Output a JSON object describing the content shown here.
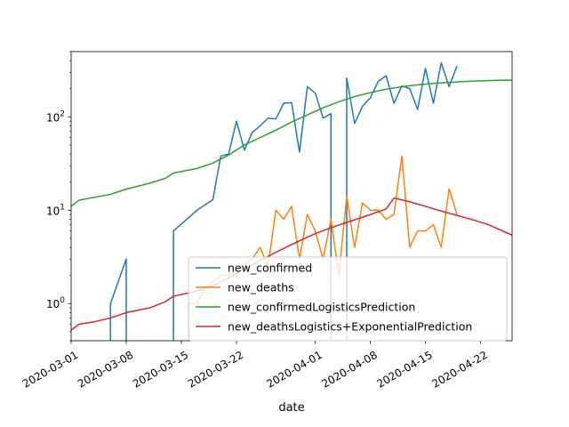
{
  "chart_data": {
    "type": "line",
    "xlabel": "date",
    "ylabel": "",
    "x_axis_type": "date",
    "xlim": [
      "2020-03-01",
      "2020-04-26"
    ],
    "y_scale": "log",
    "ylim": [
      0.4,
      500
    ],
    "y_ticks": [
      {
        "value": 1,
        "base": "10",
        "exp": "0"
      },
      {
        "value": 10,
        "base": "10",
        "exp": "1"
      },
      {
        "value": 100,
        "base": "10",
        "exp": "2"
      }
    ],
    "x_ticks": [
      {
        "date": "2020-03-01",
        "label": "2020-03-01"
      },
      {
        "date": "2020-03-08",
        "label": "2020-03-08"
      },
      {
        "date": "2020-03-15",
        "label": "2020-03-15"
      },
      {
        "date": "2020-03-22",
        "label": "2020-03-22"
      },
      {
        "date": "2020-04-01",
        "label": "2020-04-01"
      },
      {
        "date": "2020-04-08",
        "label": "2020-04-08"
      },
      {
        "date": "2020-04-15",
        "label": "2020-04-15"
      },
      {
        "date": "2020-04-22",
        "label": "2020-04-22"
      }
    ],
    "grid": false,
    "legend_position": "lower-right",
    "series": [
      {
        "name": "new_confirmed",
        "color": "#1f77b4",
        "points": [
          [
            "2020-03-06",
            0
          ],
          [
            "2020-03-06",
            1
          ],
          [
            "2020-03-08",
            3
          ],
          [
            "2020-03-08",
            0
          ],
          [
            "2020-03-14",
            0
          ],
          [
            "2020-03-14",
            6
          ],
          [
            "2020-03-17",
            10
          ],
          [
            "2020-03-19",
            13
          ],
          [
            "2020-03-20",
            38
          ],
          [
            "2020-03-21",
            40
          ],
          [
            "2020-03-22",
            90
          ],
          [
            "2020-03-23",
            44
          ],
          [
            "2020-03-24",
            68
          ],
          [
            "2020-03-25",
            80
          ],
          [
            "2020-03-26",
            97
          ],
          [
            "2020-03-27",
            95
          ],
          [
            "2020-03-28",
            140
          ],
          [
            "2020-03-29",
            142
          ],
          [
            "2020-03-30",
            42
          ],
          [
            "2020-03-31",
            210
          ],
          [
            "2020-04-01",
            180
          ],
          [
            "2020-04-02",
            97
          ],
          [
            "2020-04-03",
            108
          ],
          [
            "2020-04-03",
            0
          ],
          [
            "2020-04-05",
            0
          ],
          [
            "2020-04-05",
            260
          ],
          [
            "2020-04-06",
            85
          ],
          [
            "2020-04-07",
            130
          ],
          [
            "2020-04-08",
            160
          ],
          [
            "2020-04-09",
            240
          ],
          [
            "2020-04-10",
            275
          ],
          [
            "2020-04-11",
            140
          ],
          [
            "2020-04-12",
            215
          ],
          [
            "2020-04-13",
            200
          ],
          [
            "2020-04-14",
            120
          ],
          [
            "2020-04-15",
            330
          ],
          [
            "2020-04-16",
            140
          ],
          [
            "2020-04-17",
            380
          ],
          [
            "2020-04-18",
            210
          ],
          [
            "2020-04-19",
            350
          ]
        ]
      },
      {
        "name": "new_deaths",
        "color": "#ff7f0e",
        "points": [
          [
            "2020-03-16",
            0
          ],
          [
            "2020-03-16",
            1
          ],
          [
            "2020-03-17",
            1
          ],
          [
            "2020-03-18",
            1.5
          ],
          [
            "2020-03-19",
            1.7
          ],
          [
            "2020-03-20",
            2
          ],
          [
            "2020-03-21",
            2
          ],
          [
            "2020-03-22",
            2.3
          ],
          [
            "2020-03-23",
            2.6
          ],
          [
            "2020-03-24",
            3
          ],
          [
            "2020-03-25",
            4
          ],
          [
            "2020-03-26",
            2.5
          ],
          [
            "2020-03-27",
            10
          ],
          [
            "2020-03-28",
            8
          ],
          [
            "2020-03-29",
            11
          ],
          [
            "2020-03-30",
            3
          ],
          [
            "2020-03-31",
            9
          ],
          [
            "2020-04-01",
            6
          ],
          [
            "2020-04-02",
            3
          ],
          [
            "2020-04-03",
            8
          ],
          [
            "2020-04-04",
            2
          ],
          [
            "2020-04-05",
            14
          ],
          [
            "2020-04-06",
            4
          ],
          [
            "2020-04-07",
            12
          ],
          [
            "2020-04-08",
            10
          ],
          [
            "2020-04-09",
            10
          ],
          [
            "2020-04-10",
            8
          ],
          [
            "2020-04-11",
            9
          ],
          [
            "2020-04-12",
            38
          ],
          [
            "2020-04-13",
            4
          ],
          [
            "2020-04-14",
            6
          ],
          [
            "2020-04-15",
            6
          ],
          [
            "2020-04-16",
            7
          ],
          [
            "2020-04-17",
            4
          ],
          [
            "2020-04-18",
            17
          ],
          [
            "2020-04-19",
            9
          ]
        ]
      },
      {
        "name": "new_confirmedLogisticsPrediction",
        "color": "#2ca02c",
        "points": [
          [
            "2020-03-01",
            11
          ],
          [
            "2020-03-02",
            12.8
          ],
          [
            "2020-03-06",
            14.8
          ],
          [
            "2020-03-08",
            16.8
          ],
          [
            "2020-03-11",
            19.5
          ],
          [
            "2020-03-13",
            22
          ],
          [
            "2020-03-14",
            25
          ],
          [
            "2020-03-17",
            28
          ],
          [
            "2020-03-19",
            32
          ],
          [
            "2020-03-21",
            39
          ],
          [
            "2020-03-23",
            50
          ],
          [
            "2020-03-25",
            60
          ],
          [
            "2020-03-27",
            72
          ],
          [
            "2020-03-29",
            88
          ],
          [
            "2020-03-31",
            105
          ],
          [
            "2020-04-02",
            125
          ],
          [
            "2020-04-04",
            145
          ],
          [
            "2020-04-06",
            165
          ],
          [
            "2020-04-08",
            182
          ],
          [
            "2020-04-10",
            198
          ],
          [
            "2020-04-12",
            210
          ],
          [
            "2020-04-14",
            220
          ],
          [
            "2020-04-16",
            228
          ],
          [
            "2020-04-18",
            234
          ],
          [
            "2020-04-20",
            239
          ],
          [
            "2020-04-22",
            243
          ],
          [
            "2020-04-24",
            246
          ],
          [
            "2020-04-26",
            248
          ]
        ]
      },
      {
        "name": "new_deathsLogistics+ExponentialPrediction",
        "color": "#d62728",
        "points": [
          [
            "2020-03-01",
            0.52
          ],
          [
            "2020-03-02",
            0.6
          ],
          [
            "2020-03-04",
            0.64
          ],
          [
            "2020-03-06",
            0.7
          ],
          [
            "2020-03-08",
            0.8
          ],
          [
            "2020-03-11",
            0.9
          ],
          [
            "2020-03-13",
            1.05
          ],
          [
            "2020-03-14",
            1.2
          ],
          [
            "2020-03-16",
            1.3
          ],
          [
            "2020-03-18",
            1.45
          ],
          [
            "2020-03-20",
            1.7
          ],
          [
            "2020-03-22",
            2.1
          ],
          [
            "2020-03-24",
            2.6
          ],
          [
            "2020-03-26",
            3.2
          ],
          [
            "2020-03-28",
            3.9
          ],
          [
            "2020-03-30",
            4.7
          ],
          [
            "2020-04-01",
            5.6
          ],
          [
            "2020-04-03",
            6.5
          ],
          [
            "2020-04-05",
            7.4
          ],
          [
            "2020-04-07",
            8.4
          ],
          [
            "2020-04-10",
            10.3
          ],
          [
            "2020-04-11",
            13.5
          ],
          [
            "2020-04-13",
            12.3
          ],
          [
            "2020-04-15",
            11
          ],
          [
            "2020-04-17",
            9.8
          ],
          [
            "2020-04-19",
            8.8
          ],
          [
            "2020-04-21",
            7.9
          ],
          [
            "2020-04-23",
            7
          ],
          [
            "2020-04-26",
            5.4
          ]
        ]
      }
    ]
  }
}
